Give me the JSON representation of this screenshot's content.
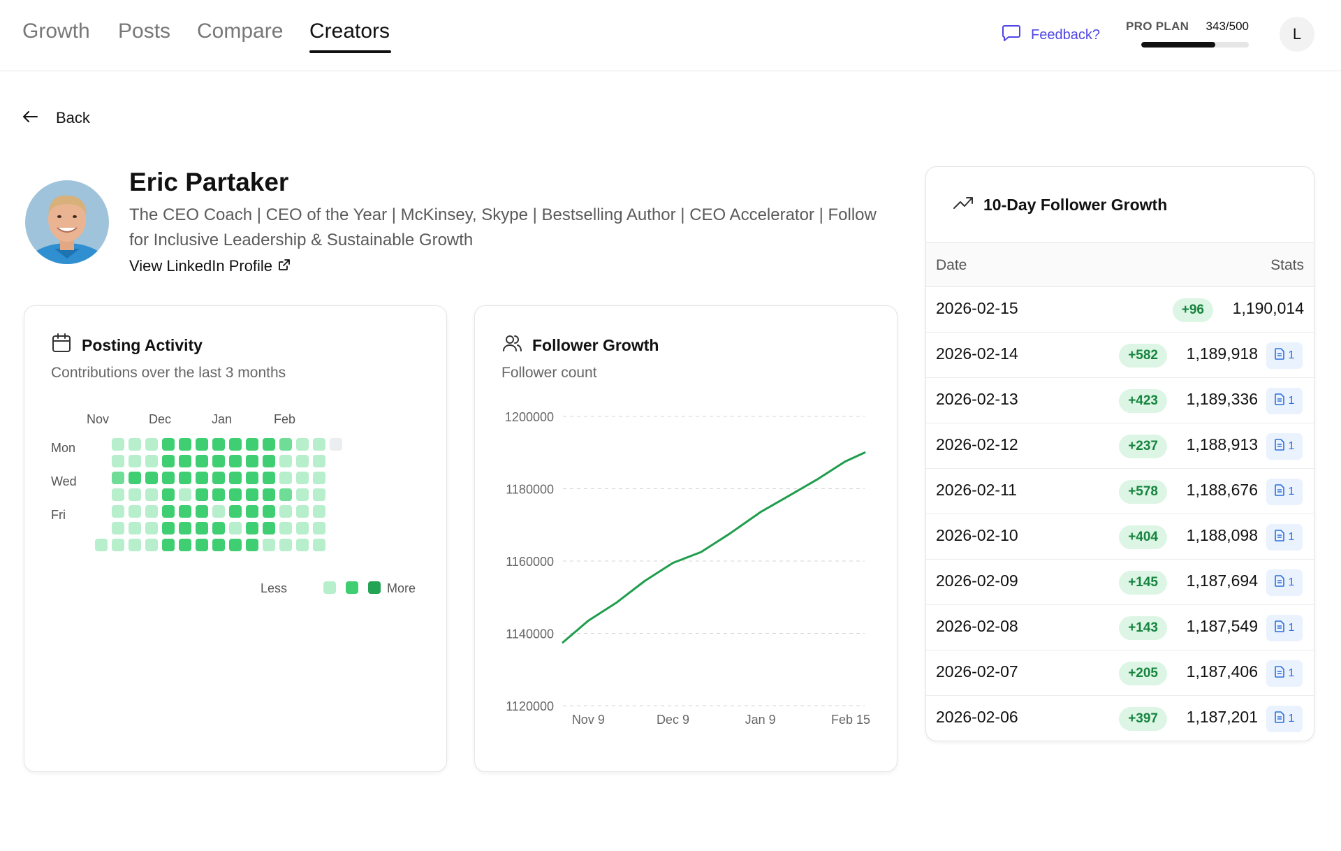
{
  "nav": {
    "tabs": [
      {
        "label": "Growth"
      },
      {
        "label": "Posts"
      },
      {
        "label": "Compare"
      },
      {
        "label": "Creators"
      }
    ],
    "active_tab": "Creators",
    "feedback_label": "Feedback?",
    "plan_label": "PRO PLAN",
    "plan_count": "343/500",
    "plan_used": 343,
    "plan_limit": 500,
    "avatar_initial": "L"
  },
  "back_label": "Back",
  "profile": {
    "name": "Eric Partaker",
    "bio": "The CEO Coach | CEO of the Year | McKinsey, Skype | Bestselling Author | CEO Accelerator | Follow for Inclusive Leadership & Sustainable Growth",
    "link_label": "View LinkedIn Profile"
  },
  "posting_activity": {
    "title": "Posting Activity",
    "subtitle": "Contributions over the last 3 months",
    "months": [
      "Nov",
      "Dec",
      "Jan",
      "Feb"
    ],
    "day_labels": [
      "Mon",
      "Wed",
      "Fri"
    ],
    "legend_less": "Less",
    "legend_more": "More",
    "colors": {
      "none": "#ebedf0",
      "low": "#b7efcc",
      "mid": "#6fdc98",
      "high": "#3fcf72",
      "max": "#22a454"
    },
    "weeks": [
      [
        -1,
        -1,
        -1,
        -1,
        -1,
        -1,
        1
      ],
      [
        1,
        1,
        2,
        1,
        1,
        1,
        1
      ],
      [
        1,
        1,
        3,
        1,
        1,
        1,
        1
      ],
      [
        1,
        1,
        3,
        1,
        1,
        1,
        1
      ],
      [
        3,
        3,
        3,
        3,
        3,
        3,
        3
      ],
      [
        3,
        3,
        3,
        1,
        3,
        3,
        3
      ],
      [
        3,
        3,
        3,
        3,
        3,
        3,
        3
      ],
      [
        3,
        3,
        3,
        3,
        1,
        3,
        3
      ],
      [
        3,
        3,
        3,
        3,
        3,
        1,
        3
      ],
      [
        3,
        3,
        3,
        3,
        3,
        3,
        3
      ],
      [
        3,
        3,
        3,
        3,
        3,
        3,
        1
      ],
      [
        2,
        1,
        1,
        2,
        1,
        1,
        1
      ],
      [
        1,
        1,
        1,
        1,
        1,
        1,
        1
      ],
      [
        1,
        1,
        1,
        1,
        1,
        1,
        1
      ],
      [
        0,
        -1,
        -1,
        -1,
        -1,
        -1,
        -1
      ]
    ]
  },
  "follower_growth": {
    "title": "Follower Growth",
    "subtitle": "Follower count"
  },
  "chart_data": {
    "type": "line",
    "x_ticks": [
      "Nov 9",
      "Dec 9",
      "Jan 9",
      "Feb 15"
    ],
    "y_ticks": [
      1120000,
      1140000,
      1160000,
      1180000,
      1200000
    ],
    "ylim": [
      1120000,
      1200000
    ],
    "grid": true,
    "color": "#1f9d4c",
    "x": [
      "2025-10-31",
      "2025-11-09",
      "2025-11-19",
      "2025-11-29",
      "2025-12-09",
      "2025-12-19",
      "2025-12-29",
      "2026-01-09",
      "2026-01-19",
      "2026-01-29",
      "2026-02-08",
      "2026-02-15"
    ],
    "values": [
      1137500,
      1143500,
      1148500,
      1154500,
      1159500,
      1162500,
      1167500,
      1173500,
      1178000,
      1182500,
      1187500,
      1190000
    ]
  },
  "growth_table": {
    "title": "10-Day Follower Growth",
    "col_date": "Date",
    "col_stats": "Stats",
    "rows": [
      {
        "date": "2026-02-15",
        "delta": "+96",
        "total": "1,190,014",
        "posts": ""
      },
      {
        "date": "2026-02-14",
        "delta": "+582",
        "total": "1,189,918",
        "posts": "1"
      },
      {
        "date": "2026-02-13",
        "delta": "+423",
        "total": "1,189,336",
        "posts": "1"
      },
      {
        "date": "2026-02-12",
        "delta": "+237",
        "total": "1,188,913",
        "posts": "1"
      },
      {
        "date": "2026-02-11",
        "delta": "+578",
        "total": "1,188,676",
        "posts": "1"
      },
      {
        "date": "2026-02-10",
        "delta": "+404",
        "total": "1,188,098",
        "posts": "1"
      },
      {
        "date": "2026-02-09",
        "delta": "+145",
        "total": "1,187,694",
        "posts": "1"
      },
      {
        "date": "2026-02-08",
        "delta": "+143",
        "total": "1,187,549",
        "posts": "1"
      },
      {
        "date": "2026-02-07",
        "delta": "+205",
        "total": "1,187,406",
        "posts": "1"
      },
      {
        "date": "2026-02-06",
        "delta": "+397",
        "total": "1,187,201",
        "posts": "1"
      }
    ]
  }
}
